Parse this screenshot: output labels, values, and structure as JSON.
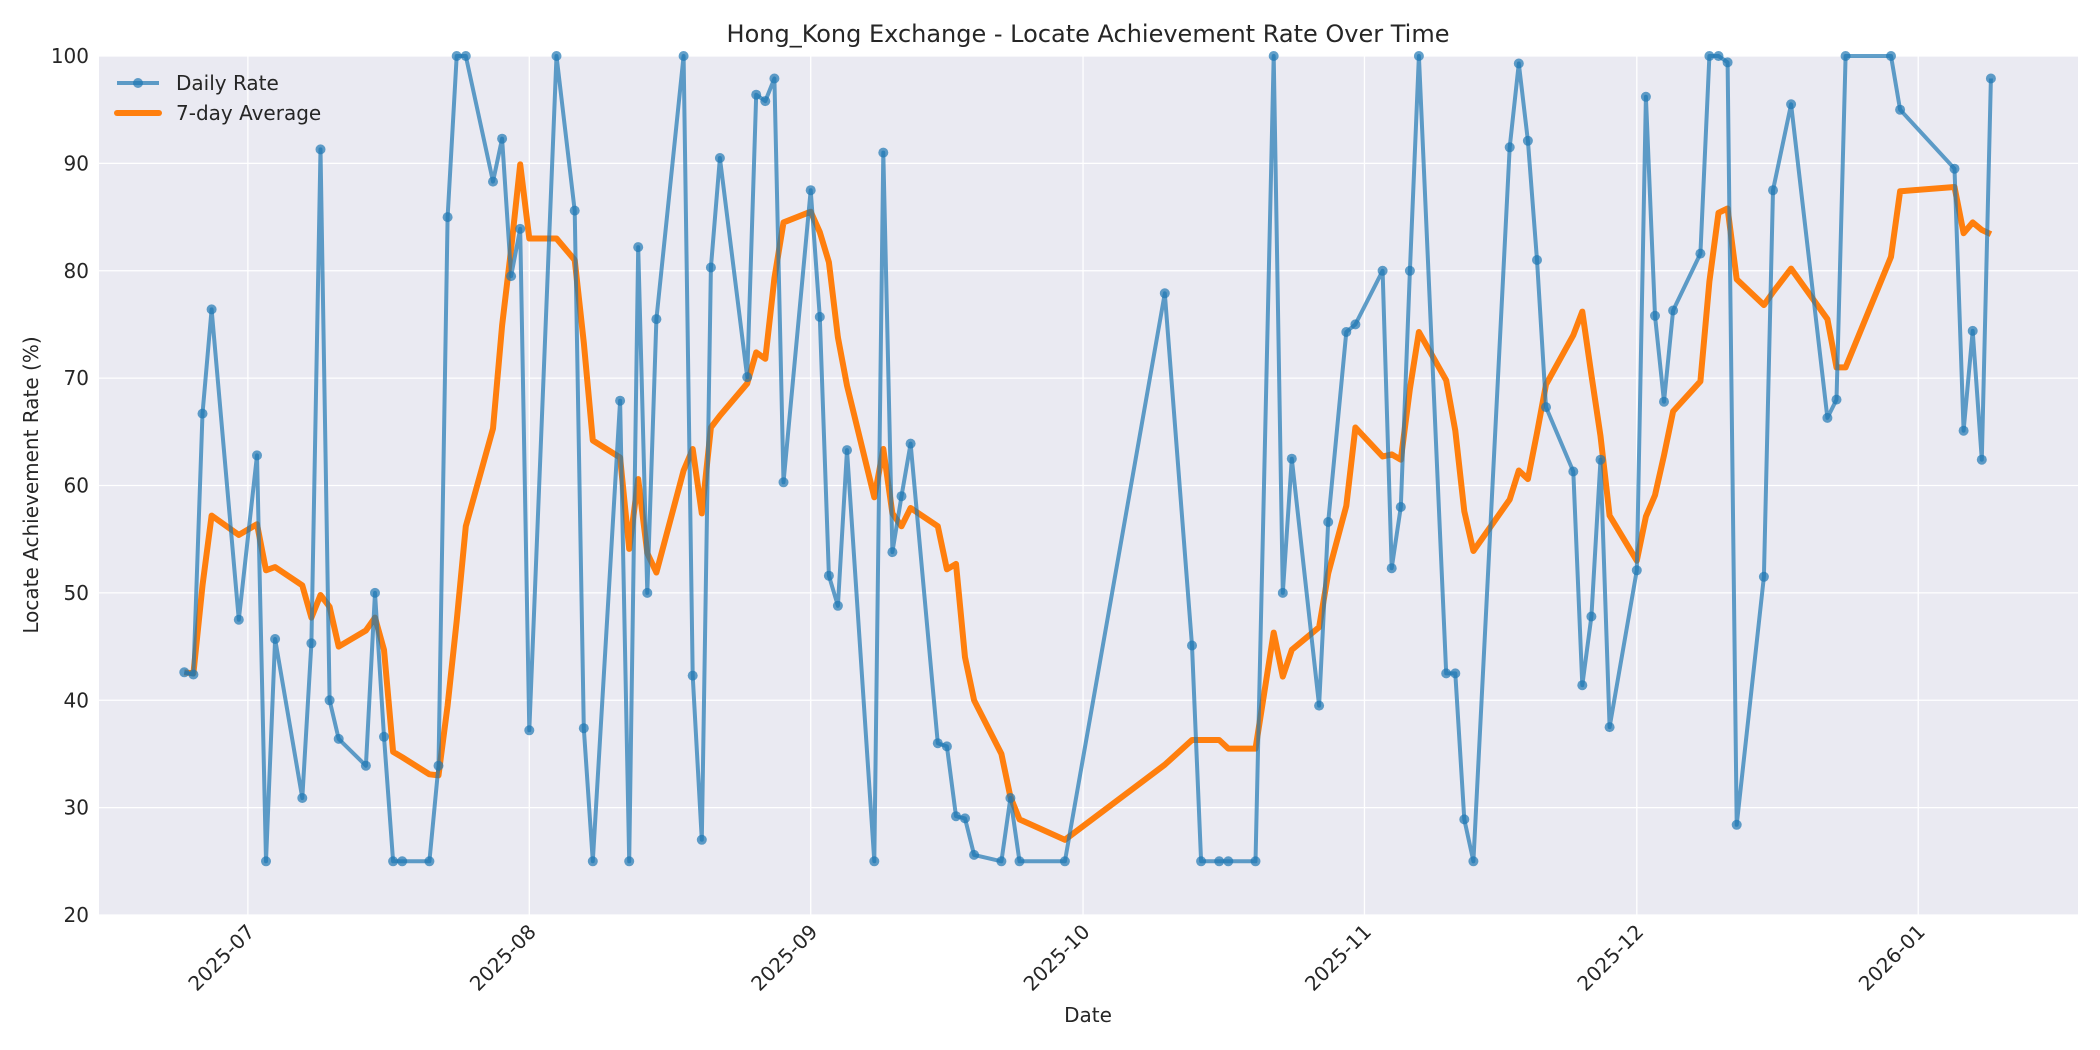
{
  "chart_data": {
    "type": "line",
    "title": "Hong_Kong Exchange - Locate Achievement Rate Over Time",
    "xlabel": "Date",
    "ylabel": "Locate Achievement Rate (%)",
    "ylim": [
      20,
      100
    ],
    "xlim": [
      "2025-06-14",
      "2026-01-19"
    ],
    "yticks": [
      20,
      30,
      40,
      50,
      60,
      70,
      80,
      90,
      100
    ],
    "xticks": [
      "2025-07",
      "2025-08",
      "2025-09",
      "2025-10",
      "2025-11",
      "2025-12",
      "2026-01"
    ],
    "grid": true,
    "legend": {
      "position": "upper left",
      "entries": [
        "Daily Rate",
        "7-day Average"
      ]
    },
    "colors": {
      "daily": "#1f77b4",
      "average": "#ff7f0e",
      "plot_bg": "#eaeaf2",
      "grid": "#ffffff"
    },
    "x": [
      "2025-06-24",
      "2025-06-25",
      "2025-06-26",
      "2025-06-27",
      "2025-06-30",
      "2025-07-02",
      "2025-07-03",
      "2025-07-04",
      "2025-07-07",
      "2025-07-08",
      "2025-07-09",
      "2025-07-10",
      "2025-07-11",
      "2025-07-14",
      "2025-07-15",
      "2025-07-16",
      "2025-07-17",
      "2025-07-18",
      "2025-07-21",
      "2025-07-22",
      "2025-07-23",
      "2025-07-24",
      "2025-07-25",
      "2025-07-28",
      "2025-07-29",
      "2025-07-30",
      "2025-07-31",
      "2025-08-01",
      "2025-08-04",
      "2025-08-06",
      "2025-08-07",
      "2025-08-08",
      "2025-08-11",
      "2025-08-12",
      "2025-08-13",
      "2025-08-14",
      "2025-08-15",
      "2025-08-18",
      "2025-08-19",
      "2025-08-20",
      "2025-08-21",
      "2025-08-22",
      "2025-08-25",
      "2025-08-26",
      "2025-08-27",
      "2025-08-28",
      "2025-08-29",
      "2025-09-01",
      "2025-09-02",
      "2025-09-03",
      "2025-09-04",
      "2025-09-05",
      "2025-09-08",
      "2025-09-09",
      "2025-09-10",
      "2025-09-11",
      "2025-09-12",
      "2025-09-15",
      "2025-09-16",
      "2025-09-17",
      "2025-09-18",
      "2025-09-19",
      "2025-09-22",
      "2025-09-23",
      "2025-09-24",
      "2025-09-29",
      "2025-10-10",
      "2025-10-13",
      "2025-10-14",
      "2025-10-16",
      "2025-10-17",
      "2025-10-20",
      "2025-10-22",
      "2025-10-23",
      "2025-10-24",
      "2025-10-27",
      "2025-10-28",
      "2025-10-30",
      "2025-10-31",
      "2025-11-03",
      "2025-11-04",
      "2025-11-05",
      "2025-11-06",
      "2025-11-07",
      "2025-11-10",
      "2025-11-11",
      "2025-11-12",
      "2025-11-13",
      "2025-11-17",
      "2025-11-18",
      "2025-11-19",
      "2025-11-20",
      "2025-11-21",
      "2025-11-24",
      "2025-11-25",
      "2025-11-26",
      "2025-11-27",
      "2025-11-28",
      "2025-12-01",
      "2025-12-02",
      "2025-12-03",
      "2025-12-04",
      "2025-12-05",
      "2025-12-08",
      "2025-12-09",
      "2025-12-10",
      "2025-12-11",
      "2025-12-12",
      "2025-12-15",
      "2025-12-16",
      "2025-12-18",
      "2025-12-22",
      "2025-12-23",
      "2025-12-24",
      "2025-12-29",
      "2025-12-30",
      "2026-01-05",
      "2026-01-06",
      "2026-01-07",
      "2026-01-08",
      "2026-01-09"
    ],
    "series": [
      {
        "name": "Daily Rate",
        "style": "line-marker",
        "values": [
          42.6,
          42.4,
          66.7,
          76.4,
          47.5,
          62.8,
          25.0,
          45.7,
          30.9,
          45.3,
          91.3,
          40.0,
          36.4,
          33.9,
          50.0,
          36.6,
          25.0,
          25.0,
          25.0,
          33.9,
          85.0,
          100,
          100,
          88.3,
          92.3,
          79.5,
          83.9,
          37.2,
          100,
          85.6,
          37.4,
          25.0,
          67.9,
          25.0,
          82.2,
          50.0,
          75.5,
          100,
          42.3,
          27.0,
          80.3,
          90.5,
          70.1,
          96.4,
          95.8,
          97.9,
          60.3,
          87.5,
          75.7,
          51.6,
          48.8,
          63.3,
          25.0,
          91.0,
          53.8,
          59.0,
          63.9,
          36.0,
          35.7,
          29.2,
          29.0,
          25.6,
          25.0,
          30.9,
          25.0,
          25.0,
          77.9,
          45.1,
          25.0,
          25.0,
          25.0,
          25.0,
          100,
          50.0,
          62.5,
          39.5,
          56.6,
          74.3,
          75.0,
          80.0,
          52.3,
          58.0,
          80.0,
          100,
          42.5,
          42.5,
          28.9,
          25.0,
          91.5,
          99.3,
          92.1,
          81.0,
          67.3,
          61.3,
          41.4,
          47.8,
          62.4,
          37.5,
          52.1,
          96.2,
          75.8,
          67.8,
          76.3,
          81.6,
          100,
          100,
          99.4,
          28.4,
          51.5,
          87.5,
          95.5,
          66.3,
          68.0,
          100,
          100,
          95.0,
          89.5,
          65.1,
          74.4,
          62.4,
          97.9
        ]
      },
      {
        "name": "7-day Average",
        "style": "line",
        "values": [
          42.6,
          42.5,
          50.7,
          57.2,
          55.4,
          56.4,
          52.1,
          52.4,
          50.7,
          47.7,
          49.8,
          48.7,
          45.0,
          46.5,
          47.7,
          44.7,
          35.2,
          34.7,
          33.1,
          33.0,
          39.5,
          47.4,
          56.2,
          65.3,
          74.9,
          82.0,
          89.9,
          83.0,
          83.0,
          81.0,
          73.3,
          64.2,
          62.6,
          54.1,
          60.6,
          53.7,
          51.9,
          61.4,
          63.4,
          57.4,
          65.4,
          66.5,
          69.5,
          72.4,
          71.8,
          79.3,
          84.5,
          85.5,
          83.6,
          80.8,
          73.8,
          69.3,
          58.9,
          63.4,
          57.4,
          56.2,
          57.9,
          56.2,
          52.2,
          52.7,
          44.0,
          40.0,
          35.0,
          31.0,
          28.9,
          27.0,
          34.0,
          36.3,
          36.3,
          36.3,
          35.5,
          35.5,
          46.3,
          42.2,
          44.7,
          46.8,
          51.8,
          58.1,
          65.4,
          62.7,
          62.9,
          62.4,
          69.0,
          74.3,
          69.8,
          65.1,
          57.6,
          53.9,
          58.7,
          61.4,
          60.6,
          64.9,
          69.4,
          74.0,
          76.2,
          70.3,
          64.6,
          57.2,
          53.0,
          57.1,
          59.1,
          62.8,
          66.9,
          69.7,
          79.0,
          85.4,
          85.8,
          79.2,
          76.8,
          78.0,
          80.2,
          75.5,
          71.0,
          71.0,
          81.3,
          87.4,
          87.8,
          83.5,
          84.5,
          83.8,
          83.4
        ]
      }
    ]
  }
}
